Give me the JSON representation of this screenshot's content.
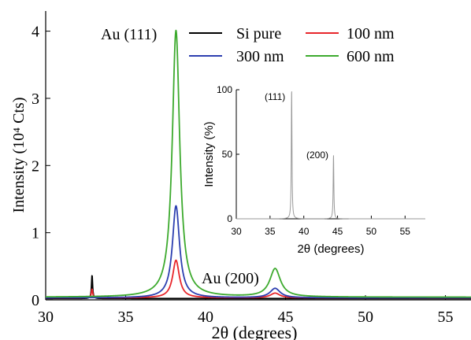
{
  "chart_data": [
    {
      "type": "line",
      "xlabel": "2θ (degrees)",
      "ylabel": "Intensity (10⁴ Cts)",
      "xlim": [
        30,
        56.6
      ],
      "ylim": [
        0,
        4.3
      ],
      "x_ticks": [
        30,
        35,
        40,
        45,
        50,
        55
      ],
      "y_ticks": [
        0,
        1,
        2,
        3,
        4
      ],
      "grid": false,
      "legend_position": "top-right",
      "annotations": [
        {
          "text": "Au (111)",
          "x": 36.1,
          "y": 4.0
        },
        {
          "text": "Au (200)",
          "x": 43.0,
          "y": 0.32
        }
      ],
      "series": [
        {
          "name": "Si pure",
          "color": "#000000",
          "peaks": [
            {
              "x": 32.9,
              "height": 0.35,
              "width": 0.04
            }
          ],
          "baseline": 0.02
        },
        {
          "name": "100 nm",
          "color": "#e8262b",
          "peaks": [
            {
              "x": 38.15,
              "height": 0.56,
              "width": 0.25
            },
            {
              "x": 44.35,
              "height": 0.07,
              "width": 0.35
            },
            {
              "x": 32.9,
              "height": 0.13,
              "width": 0.05
            }
          ],
          "baseline": 0.03
        },
        {
          "name": "300 nm",
          "color": "#2d3fb0",
          "peaks": [
            {
              "x": 38.15,
              "height": 1.37,
              "width": 0.27
            },
            {
              "x": 44.35,
              "height": 0.14,
              "width": 0.38
            }
          ],
          "baseline": 0.03
        },
        {
          "name": "600 nm",
          "color": "#3daa2e",
          "peaks": [
            {
              "x": 38.15,
              "height": 3.97,
              "width": 0.28
            },
            {
              "x": 44.35,
              "height": 0.42,
              "width": 0.4
            }
          ],
          "baseline": 0.04
        }
      ]
    },
    {
      "type": "line",
      "xlabel": "2θ (degrees)",
      "ylabel": "Intensity (%)",
      "xlim": [
        30,
        58
      ],
      "ylim": [
        0,
        100
      ],
      "x_ticks": [
        30,
        35,
        40,
        45,
        50,
        55
      ],
      "y_ticks": [
        0,
        50,
        100
      ],
      "grid": false,
      "annotations": [
        {
          "text": "(111)",
          "x": 35.2,
          "y": 92
        },
        {
          "text": "(200)",
          "x": 41.3,
          "y": 47
        }
      ],
      "series": [
        {
          "color": "#999999",
          "peaks": [
            {
              "x": 38.2,
              "height": 100,
              "width": 0.06
            },
            {
              "x": 44.4,
              "height": 49,
              "width": 0.06
            }
          ],
          "baseline": 0
        }
      ]
    }
  ]
}
